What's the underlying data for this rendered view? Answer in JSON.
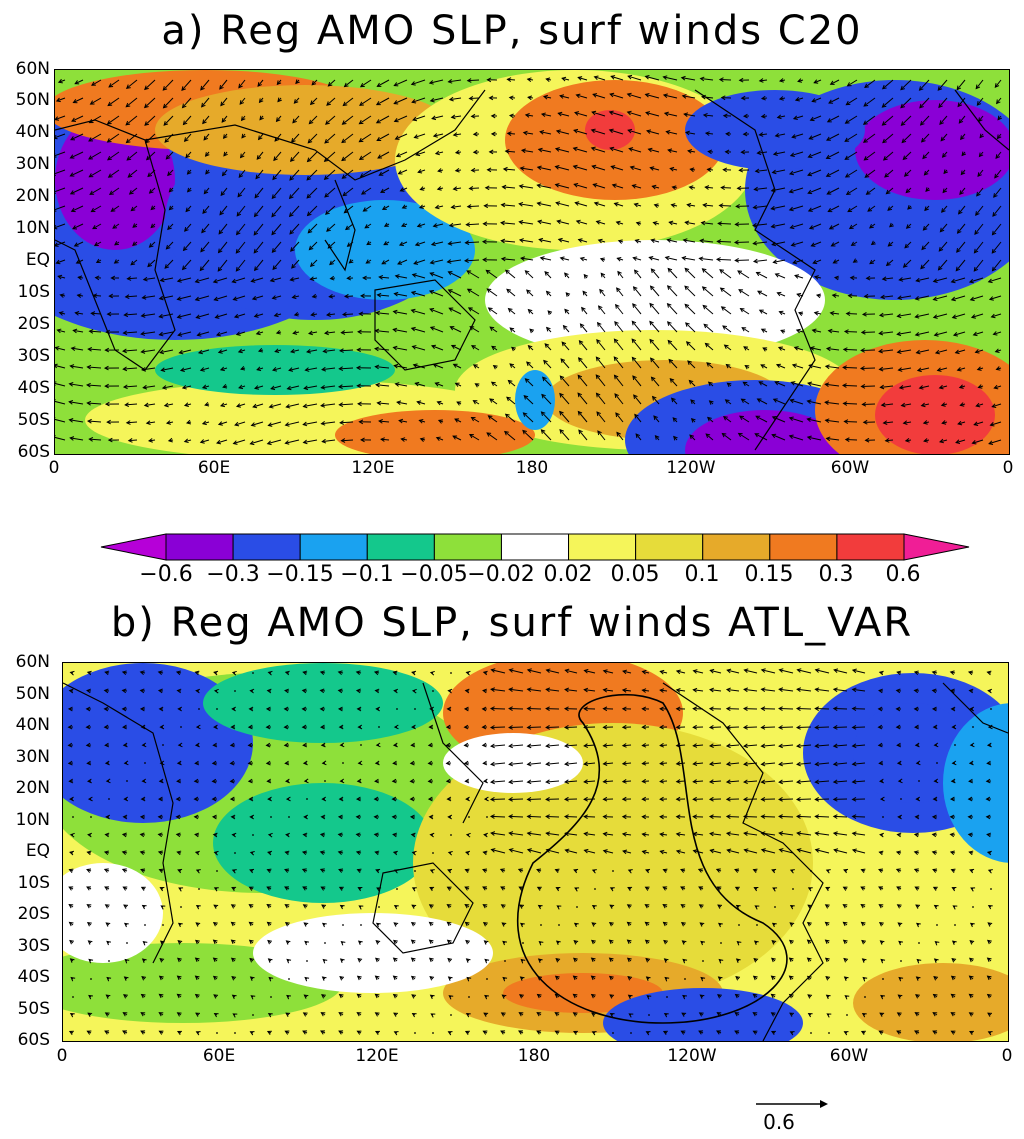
{
  "panel_a": {
    "title": "a) Reg AMO SLP, surf winds C20",
    "lat_labels": [
      "60N",
      "50N",
      "40N",
      "30N",
      "20N",
      "10N",
      "EQ",
      "10S",
      "20S",
      "30S",
      "40S",
      "50S",
      "60S"
    ],
    "lon_labels": [
      "0",
      "60E",
      "120E",
      "180",
      "120W",
      "60W",
      "0"
    ]
  },
  "panel_b": {
    "title": "b) Reg AMO SLP, surf winds ATL_VAR",
    "lat_labels": [
      "60N",
      "50N",
      "40N",
      "30N",
      "20N",
      "10N",
      "EQ",
      "10S",
      "20S",
      "30S",
      "40S",
      "50S",
      "60S"
    ],
    "lon_labels": [
      "0",
      "60E",
      "120E",
      "180",
      "120W",
      "60W",
      "0"
    ]
  },
  "colorbar": {
    "labels": [
      "−0.6",
      "−0.3",
      "−0.15",
      "−0.1",
      "−0.05",
      "−0.02",
      "0.02",
      "0.05",
      "0.1",
      "0.15",
      "0.3",
      "0.6"
    ],
    "colors": [
      "#b600d8",
      "#8a00d6",
      "#2a4de6",
      "#1aa2f0",
      "#14c88c",
      "#8ee03a",
      "#ffffff",
      "#f5f55a",
      "#e6dc3a",
      "#e6aa2a",
      "#f07a20",
      "#f23c3c",
      "#f01e96"
    ]
  },
  "reference_vector": {
    "label": "0.6"
  }
}
